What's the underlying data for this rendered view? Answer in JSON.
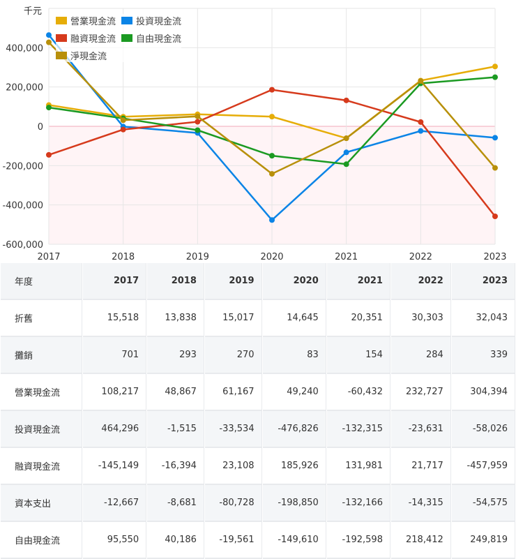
{
  "chart_data": {
    "type": "line",
    "ylabel": "千元",
    "x": [
      "2017",
      "2018",
      "2019",
      "2020",
      "2021",
      "2022",
      "2023"
    ],
    "ylim": [
      -600000,
      600000
    ],
    "yticks": [
      "400,000",
      "200,000",
      "0",
      "-200,000",
      "-400,000",
      "-600,000"
    ],
    "ytick_values": [
      400000,
      200000,
      0,
      -200000,
      -400000,
      -600000
    ],
    "grid": true,
    "legend_position": "top-left",
    "series": [
      {
        "name": "營業現金流",
        "color": "#e6ad08",
        "values": [
          108217,
          48867,
          61167,
          49240,
          -60432,
          232727,
          304394
        ]
      },
      {
        "name": "投資現金流",
        "color": "#0b84e6",
        "values": [
          464296,
          -1515,
          -33534,
          -476826,
          -132315,
          -23631,
          -58026
        ]
      },
      {
        "name": "融資現金流",
        "color": "#d63a1c",
        "values": [
          -145149,
          -16394,
          23108,
          185926,
          131981,
          21717,
          -457959
        ]
      },
      {
        "name": "自由現金流",
        "color": "#1b9a22",
        "values": [
          95550,
          40186,
          -19561,
          -149610,
          -192598,
          218412,
          249819
        ]
      },
      {
        "name": "淨現金流",
        "color": "#b8900b",
        "values": [
          427364,
          30958,
          50741,
          -241660,
          -60766,
          230813,
          -211591
        ]
      }
    ]
  },
  "table": {
    "header": [
      "年度",
      "2017",
      "2018",
      "2019",
      "2020",
      "2021",
      "2022",
      "2023"
    ],
    "rows": [
      [
        "折舊",
        "15,518",
        "13,838",
        "15,017",
        "14,645",
        "20,351",
        "30,303",
        "32,043"
      ],
      [
        "攤銷",
        "701",
        "293",
        "270",
        "83",
        "154",
        "284",
        "339"
      ],
      [
        "營業現金流",
        "108,217",
        "48,867",
        "61,167",
        "49,240",
        "-60,432",
        "232,727",
        "304,394"
      ],
      [
        "投資現金流",
        "464,296",
        "-1,515",
        "-33,534",
        "-476,826",
        "-132,315",
        "-23,631",
        "-58,026"
      ],
      [
        "融資現金流",
        "-145,149",
        "-16,394",
        "23,108",
        "185,926",
        "131,981",
        "21,717",
        "-457,959"
      ],
      [
        "資本支出",
        "-12,667",
        "-8,681",
        "-80,728",
        "-198,850",
        "-132,166",
        "-14,315",
        "-54,575"
      ],
      [
        "自由現金流",
        "95,550",
        "40,186",
        "-19,561",
        "-149,610",
        "-192,598",
        "218,412",
        "249,819"
      ]
    ]
  }
}
